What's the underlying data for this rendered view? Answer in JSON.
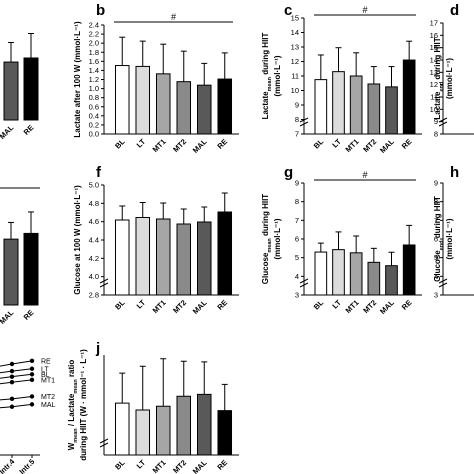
{
  "figure": {
    "categories": [
      "BL",
      "LT",
      "MT1",
      "MT2",
      "MAL",
      "RE"
    ],
    "bar_fills": [
      "#ffffff",
      "#dcdcdc",
      "#a6a6a6",
      "#8a8a8a",
      "#595959",
      "#000000"
    ]
  },
  "chart_data": [
    {
      "id": "a",
      "letter": "",
      "type": "bar",
      "categories": [
        "",
        "MAL",
        "RE"
      ],
      "values": [
        null,
        1.42,
        1.52
      ],
      "errors": [
        null,
        0.48,
        0.6
      ],
      "fills": [
        "#a6a6a6",
        "#595959",
        "#000000"
      ],
      "ylim": [
        0,
        2.5
      ],
      "yticks": [],
      "ylabel": "",
      "significance": ""
    },
    {
      "id": "b",
      "letter": "b",
      "type": "bar",
      "categories": [
        "BL",
        "LT",
        "MT1",
        "MT2",
        "MAL",
        "RE"
      ],
      "values": [
        1.57,
        1.55,
        1.38,
        1.2,
        1.12,
        1.26
      ],
      "errors": [
        0.65,
        0.58,
        0.68,
        0.7,
        0.5,
        0.6
      ],
      "ylim": [
        0,
        2.5
      ],
      "yticks": [
        "0.0",
        "0.2",
        "0.4",
        "0.6",
        "0.8",
        "1.0",
        "1.2",
        "1.4",
        "1.6",
        "1.8",
        "2.0",
        "2.2",
        "2.4"
      ],
      "ylabel": "Lactate after 100  W (mmol·L⁻¹)",
      "significance": "#"
    },
    {
      "id": "c",
      "letter": "c",
      "type": "bar",
      "categories": [
        "BL",
        "LT",
        "MT1",
        "MT2",
        "MAL",
        "RE"
      ],
      "values": [
        10.75,
        11.3,
        11.0,
        10.45,
        10.25,
        12.1
      ],
      "errors": [
        1.7,
        1.65,
        1.6,
        1.2,
        1.4,
        1.3
      ],
      "ylim": [
        7,
        15
      ],
      "ybreak": [
        8,
        9
      ],
      "yticks": [
        "7",
        "8",
        "9",
        "10",
        "11",
        "12",
        "13",
        "14",
        "15"
      ],
      "ylabel": "Lactatemean during HIIT",
      "ylabel_base": "Lactate",
      "ylabel_sub": "mean",
      "ylabel_rest": " during HIIT",
      "ylabel2": "(mmol·L⁻¹)",
      "significance": "#"
    },
    {
      "id": "d",
      "letter": "d",
      "type": "bar",
      "categories": [],
      "values": [],
      "ylim": [
        8,
        17
      ],
      "ybreak": [
        8,
        9
      ],
      "yticks": [
        "8",
        "9",
        "10",
        "11",
        "12",
        "13",
        "14",
        "15",
        "16",
        "17"
      ],
      "ylabel": "Lactateend during HIIT",
      "ylabel_base": "Lactate",
      "ylabel_sub": "end",
      "ylabel_rest": " during HIIT",
      "ylabel2": "(mmol·L⁻¹)",
      "significance": ""
    },
    {
      "id": "e",
      "letter": "",
      "type": "bar",
      "categories": [
        "",
        "MAL",
        "RE"
      ],
      "values": [
        null,
        4.18,
        4.3
      ],
      "errors": [
        null,
        0.35,
        0.45
      ],
      "fills": [
        "#a6a6a6",
        "#595959",
        "#000000"
      ],
      "ylim": [
        2.8,
        5.0
      ],
      "yticks": [],
      "ylabel": "",
      "significance": ""
    },
    {
      "id": "f",
      "letter": "f",
      "type": "bar",
      "categories": [
        "BL",
        "LT",
        "MT1",
        "MT2",
        "MAL",
        "RE"
      ],
      "values": [
        4.3,
        4.35,
        4.32,
        4.22,
        4.26,
        4.46
      ],
      "errors": [
        0.28,
        0.3,
        0.32,
        0.3,
        0.3,
        0.38
      ],
      "ylim": [
        2.8,
        5.0
      ],
      "ybreak": [
        2.8,
        3.4
      ],
      "yticks": [
        "2.8",
        "4.0",
        "4.2",
        "4.4",
        "4.6",
        "4.8",
        "5.0"
      ],
      "ylabel": "Glucose at 100 W (mmol·L⁻¹)",
      "significance": ""
    },
    {
      "id": "g",
      "letter": "g",
      "type": "bar",
      "categories": [
        "BL",
        "LT",
        "MT1",
        "MT2",
        "MAL",
        "RE"
      ],
      "values": [
        5.3,
        5.43,
        5.26,
        4.75,
        4.57,
        5.68
      ],
      "errors": [
        0.48,
        0.95,
        0.9,
        0.75,
        0.72,
        1.05
      ],
      "ylim": [
        3,
        9
      ],
      "ybreak": [
        3,
        4
      ],
      "yticks": [
        "3",
        "4",
        "5",
        "6",
        "7",
        "8",
        "9"
      ],
      "ylabel": "Glucosemean during HIIT",
      "ylabel_base": "Glucose",
      "ylabel_sub": "mean",
      "ylabel_rest": " during HIIT",
      "ylabel2": "(mmol·L⁻¹)",
      "significance": "#"
    },
    {
      "id": "h",
      "letter": "h",
      "type": "bar",
      "categories": [],
      "values": [],
      "ylim": [
        3,
        9
      ],
      "ybreak": [
        3,
        4
      ],
      "yticks": [
        "3",
        "4",
        "5",
        "6",
        "7",
        "8",
        "9"
      ],
      "ylabel": "Glucoseend during HIIT",
      "ylabel_base": "Glucose",
      "ylabel_sub": "end",
      "ylabel_rest": " during HIIT",
      "ylabel2": "(mmol·L⁻¹)",
      "significance": ""
    },
    {
      "id": "i",
      "letter": "",
      "type": "line",
      "x": [
        "3",
        "Intr.4",
        "Intr.5"
      ],
      "xlabels_shown": [
        "3",
        "Intr.4",
        "Intr.5"
      ],
      "series": [
        {
          "name": "RE",
          "values": [
            0.92,
            0.96,
            1.0
          ]
        },
        {
          "name": "LT",
          "values": [
            0.84,
            0.87,
            0.9
          ]
        },
        {
          "name": "BL",
          "values": [
            0.77,
            0.8,
            0.83
          ]
        },
        {
          "name": "MT1",
          "values": [
            0.7,
            0.73,
            0.76
          ]
        },
        {
          "name": "MT2",
          "values": [
            0.5,
            0.52,
            0.55
          ]
        },
        {
          "name": "MAL",
          "values": [
            0.4,
            0.42,
            0.45
          ]
        }
      ],
      "ylim": [
        0,
        1.2
      ]
    },
    {
      "id": "j",
      "letter": "j",
      "type": "bar",
      "categories": [
        "BL",
        "LT",
        "MT1",
        "MT2",
        "MAL",
        "RE"
      ],
      "values": [
        22.3,
        21.2,
        21.8,
        23.4,
        23.7,
        21.1
      ],
      "errors": [
        4.8,
        7.0,
        7.6,
        5.6,
        5.2,
        4.2
      ],
      "ylim": [
        14,
        30
      ],
      "ybreak": [
        14,
        16
      ],
      "yticks": [],
      "ylabel": "Wmean / Lactatemean ratio during HIIT (W · mmol⁻¹ · L⁻¹)",
      "ylabel_base": "W",
      "ylabel_sub": "mean",
      "ylabel_rest": " / Lactate",
      "ylabel_sub2": "mean",
      "ylabel_rest2": " ratio",
      "ylabel2": "during HIIT (W · mmol⁻¹ · L⁻¹)",
      "significance": ""
    }
  ]
}
